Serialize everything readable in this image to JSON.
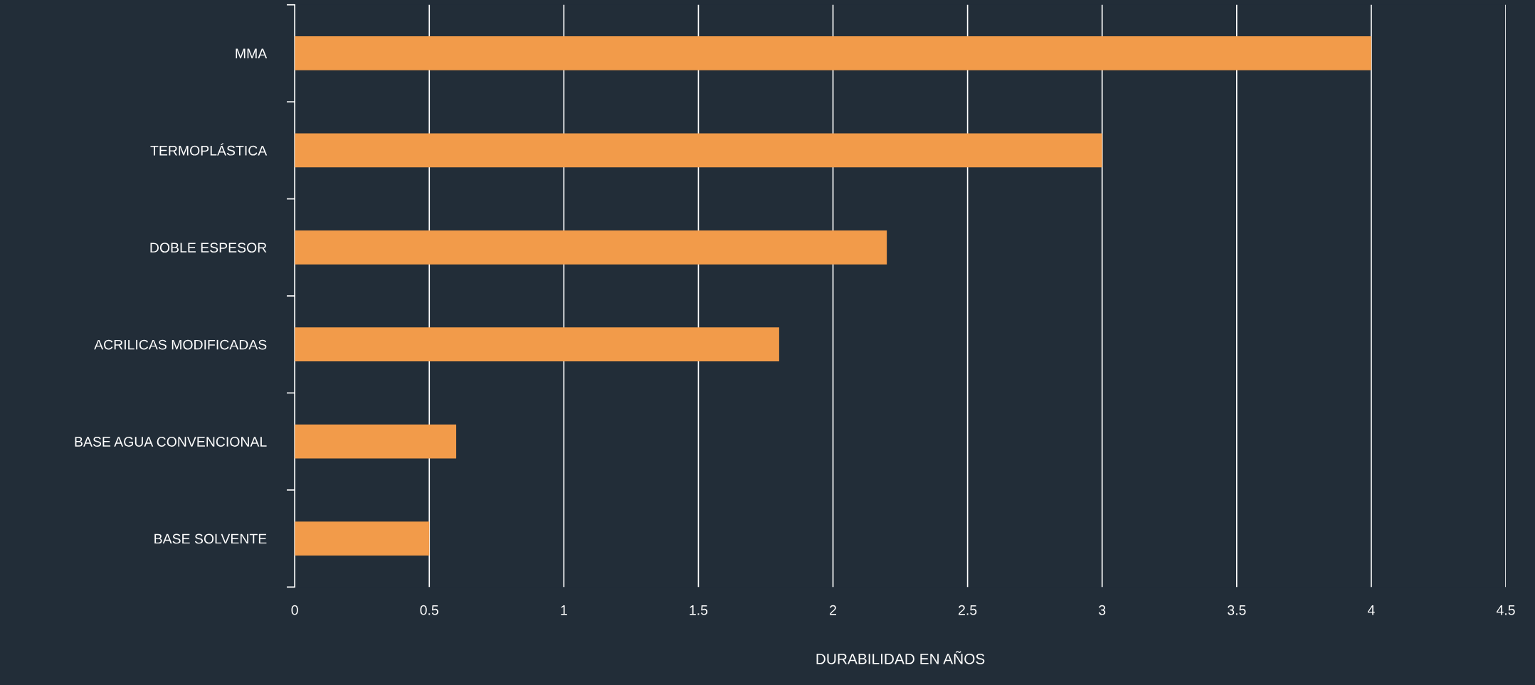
{
  "chart_data": {
    "type": "bar",
    "orientation": "horizontal",
    "xlabel": "DURABILIDAD EN AÑOS",
    "categories": [
      "MMA",
      "TERMOPLÁSTICA",
      "DOBLE ESPESOR",
      "ACRILICAS MODIFICADAS",
      "BASE AGUA CONVENCIONAL",
      "BASE SOLVENTE"
    ],
    "values": [
      4,
      3,
      2.2,
      1.8,
      0.6,
      0.5
    ],
    "color": "#f29b4a",
    "xlim": [
      0,
      4.5
    ],
    "xticks": [
      0,
      0.5,
      1,
      1.5,
      2,
      2.5,
      3,
      3.5,
      4,
      4.5
    ],
    "grid": "x"
  }
}
